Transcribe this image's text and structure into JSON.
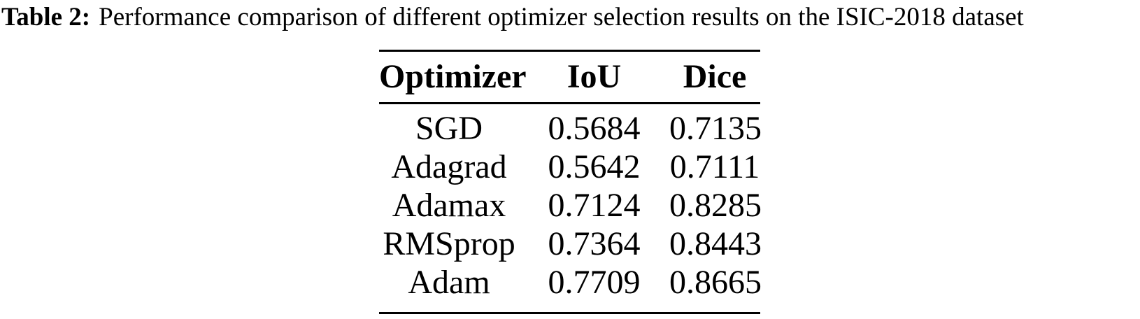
{
  "caption": {
    "label": "Table 2:",
    "text": "Performance comparison of different optimizer selection results on the ISIC-2018 dataset"
  },
  "table": {
    "headers": [
      "Optimizer",
      "IoU",
      "Dice"
    ],
    "rows": [
      {
        "optimizer": "SGD",
        "iou": "0.5684",
        "dice": "0.7135"
      },
      {
        "optimizer": "Adagrad",
        "iou": "0.5642",
        "dice": "0.7111"
      },
      {
        "optimizer": "Adamax",
        "iou": "0.7124",
        "dice": "0.8285"
      },
      {
        "optimizer": "RMSprop",
        "iou": "0.7364",
        "dice": "0.8443"
      },
      {
        "optimizer": "Adam",
        "iou": "0.7709",
        "dice": "0.8665"
      }
    ]
  },
  "colors": {
    "text": "#000000",
    "background": "#ffffff",
    "rule": "#000000"
  }
}
